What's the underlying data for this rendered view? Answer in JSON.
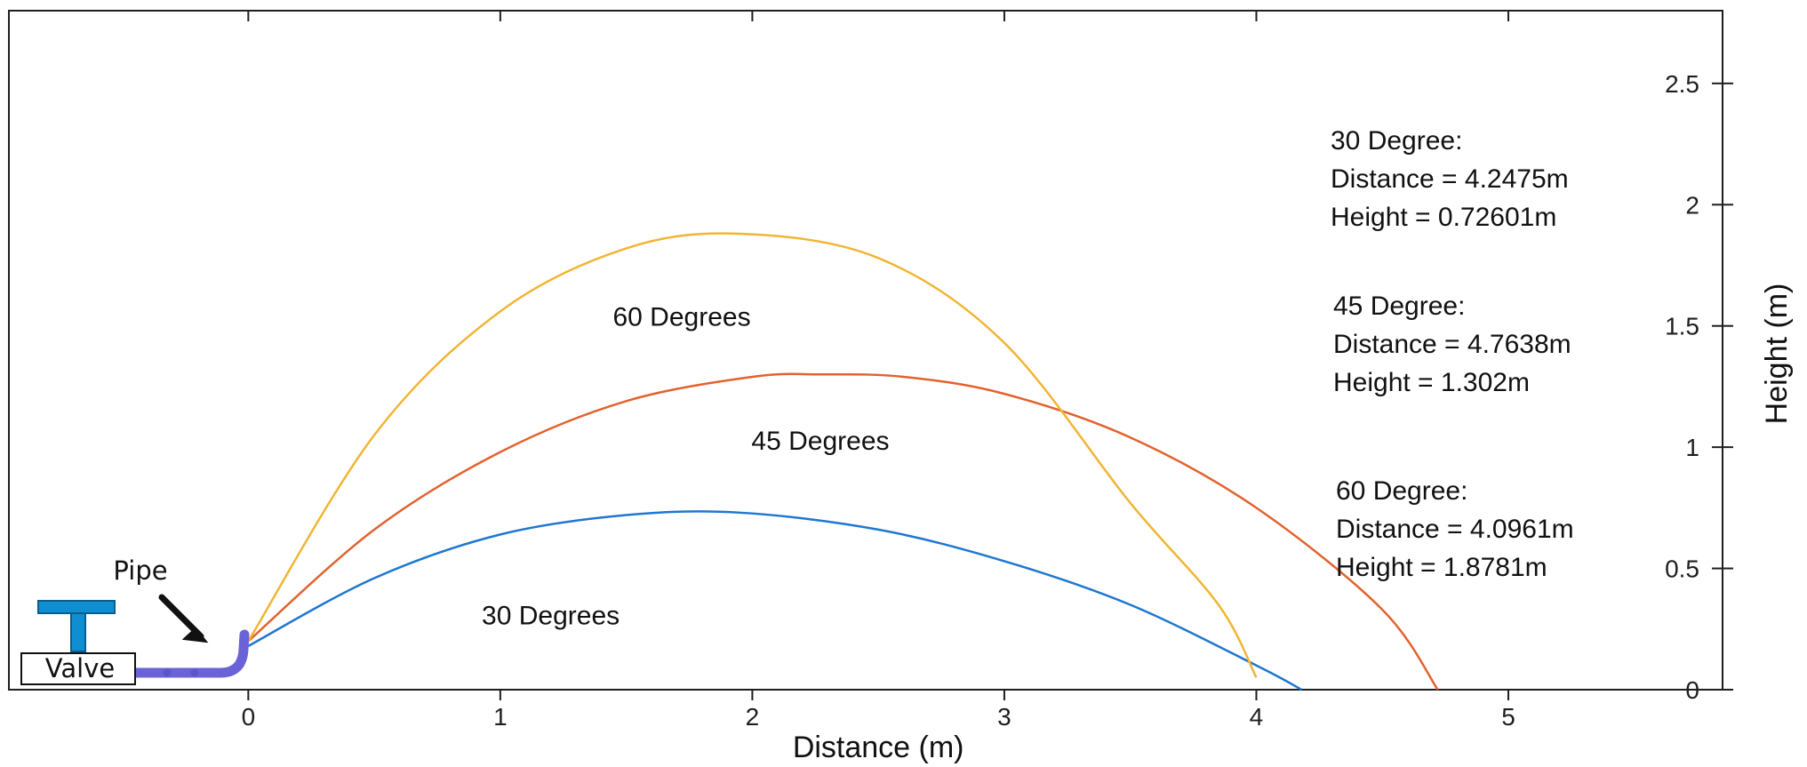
{
  "chart_data": {
    "type": "line",
    "xlabel": "Distance (m)",
    "ylabel": "Height (m)",
    "xlim": [
      -0.95,
      5.85
    ],
    "ylim": [
      0,
      2.8
    ],
    "xticks": [
      0,
      1,
      2,
      3,
      4,
      5
    ],
    "yticks": [
      0,
      0.5,
      1,
      1.5,
      2,
      2.5
    ],
    "yaxis_side": "right",
    "grid": false,
    "series": [
      {
        "name": "30 Degrees",
        "color": "#1f77d0",
        "x": [
          0.0,
          0.5,
          1.0,
          1.5,
          1.95,
          2.5,
          3.0,
          3.5,
          4.0,
          4.18
        ],
        "y": [
          0.18,
          0.46,
          0.64,
          0.72,
          0.73,
          0.66,
          0.53,
          0.35,
          0.1,
          0.0
        ]
      },
      {
        "name": "45 Degrees",
        "color": "#e2632f",
        "x": [
          0.0,
          0.5,
          1.0,
          1.5,
          2.0,
          2.27,
          2.6,
          3.0,
          3.5,
          4.0,
          4.5,
          4.72
        ],
        "y": [
          0.2,
          0.66,
          0.98,
          1.19,
          1.29,
          1.3,
          1.29,
          1.22,
          1.04,
          0.75,
          0.33,
          0.0
        ]
      },
      {
        "name": "60 Degrees",
        "color": "#f2b534",
        "x": [
          0.0,
          0.5,
          1.0,
          1.5,
          1.95,
          2.5,
          3.0,
          3.5,
          3.85,
          4.0
        ],
        "y": [
          0.2,
          1.05,
          1.56,
          1.82,
          1.88,
          1.78,
          1.43,
          0.77,
          0.35,
          0.05
        ]
      }
    ],
    "annotations": [
      {
        "text": "60 Degrees",
        "x": 1.72,
        "y": 1.5
      },
      {
        "text": "45 Degrees",
        "x": 2.27,
        "y": 0.99
      },
      {
        "text": "30 Degrees",
        "x": 1.2,
        "y": 0.27
      }
    ],
    "results": [
      [
        "30 Degree:",
        "Distance = 4.2475m",
        "Height = 0.72601m"
      ],
      [
        "45 Degree:",
        "Distance = 4.7638m",
        "Height = 1.302m"
      ],
      [
        "60 Degree:",
        "Distance = 4.0961m",
        "Height = 1.8781m"
      ]
    ],
    "schematic": {
      "pipe_label": "Pipe",
      "valve_label": "Valve",
      "pipe_color": "#6a63d8",
      "valve_color": "#0f8fd1"
    }
  }
}
